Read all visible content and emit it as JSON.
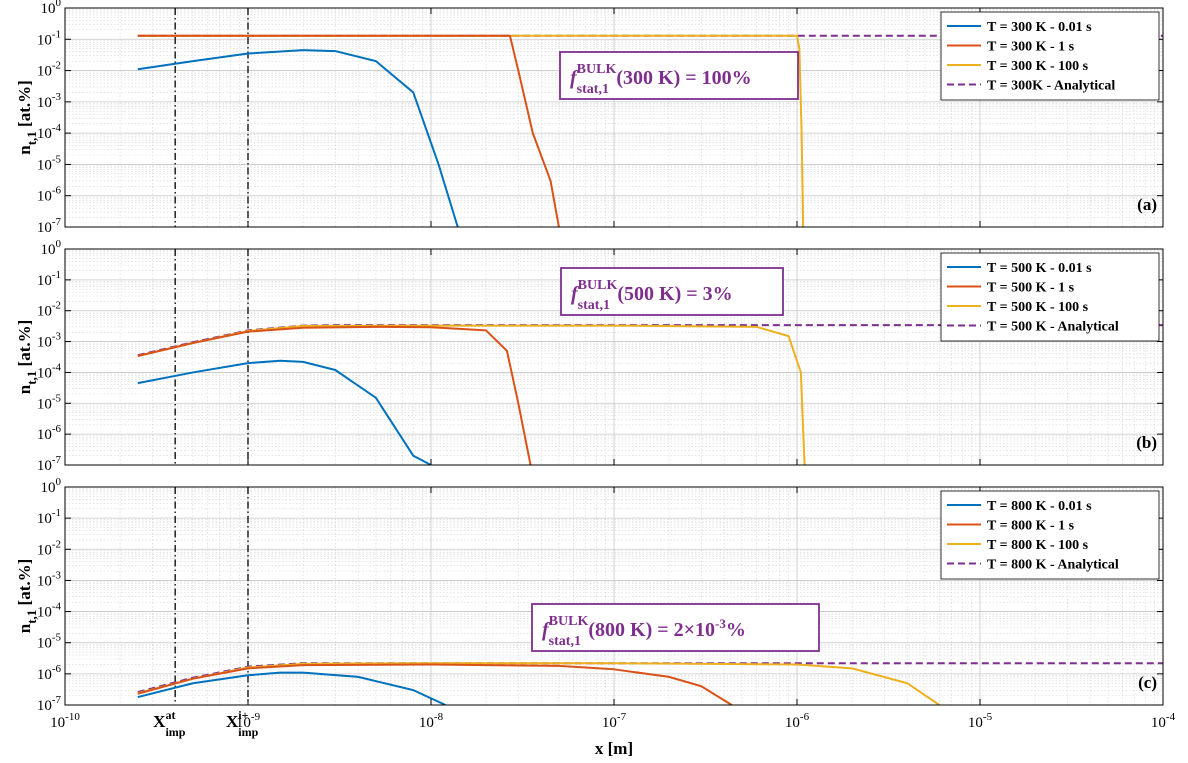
{
  "colors": {
    "blue": "#0072bd",
    "orange": "#d95319",
    "yellow": "#edb120",
    "purple": "#7e2f8e",
    "grid": "#d4d4d4"
  },
  "common": {
    "xlabel": "x [m]",
    "xscale": "log",
    "yscale": "log",
    "xlim": [
      1e-10,
      0.0001
    ],
    "ylim": [
      1e-07,
      1
    ],
    "grid": true,
    "legend_position": "top-right",
    "vlines": [
      {
        "x": 4e-10,
        "label_main": "X",
        "label_sup": "at",
        "label_sub": "imp"
      },
      {
        "x": 1e-09,
        "label_main": "X",
        "label_sup": "i+",
        "label_sub": "imp"
      }
    ]
  },
  "chart_data": [
    {
      "type": "line",
      "panel_label": "(a)",
      "ylabel_main": "n",
      "ylabel_sub": "t,1",
      "ylabel_rest": " [at.%]",
      "annotation": {
        "f": "f",
        "sup": "BULK",
        "sub": "stat,1",
        "rest": "(300 K) = 100%"
      },
      "series": [
        {
          "name": "T = 300 K - 0.01 s",
          "style": "solid",
          "color": "blue",
          "x": [
            2.5e-10,
            5e-10,
            1e-09,
            2e-09,
            3e-09,
            5e-09,
            8e-09,
            1.1e-08,
            1.4e-08
          ],
          "y": [
            0.011,
            0.02,
            0.035,
            0.045,
            0.042,
            0.02,
            0.002,
            1e-05,
            1e-07
          ]
        },
        {
          "name": "T = 300 K - 1 s",
          "style": "solid",
          "color": "orange",
          "x": [
            2.5e-10,
            1e-08,
            2.7e-08,
            3e-08,
            3.6e-08,
            4.5e-08,
            5e-08
          ],
          "y": [
            0.13,
            0.13,
            0.13,
            0.01,
            0.0001,
            3e-06,
            1e-07
          ]
        },
        {
          "name": "T = 300 K - 100 s",
          "style": "solid",
          "color": "yellow",
          "x": [
            2.5e-10,
            1e-07,
            1e-06,
            1.03e-06,
            1.06e-06,
            1.08e-06
          ],
          "y": [
            0.13,
            0.13,
            0.13,
            0.05,
            0.0001,
            1e-07
          ]
        },
        {
          "name": "T = 300K - Analytical",
          "style": "dashed",
          "color": "purple",
          "x": [
            2.5e-10,
            0.0001
          ],
          "y": [
            0.13,
            0.13
          ]
        }
      ]
    },
    {
      "type": "line",
      "panel_label": "(b)",
      "ylabel_main": "n",
      "ylabel_sub": "t,1",
      "ylabel_rest": " [at.%]",
      "annotation": {
        "f": "f",
        "sup": "BULK",
        "sub": "stat,1",
        "rest": "(500 K) = 3%"
      },
      "series": [
        {
          "name": "T = 500 K - 0.01 s",
          "style": "solid",
          "color": "blue",
          "x": [
            2.5e-10,
            5e-10,
            1e-09,
            1.5e-09,
            2e-09,
            3e-09,
            5e-09,
            8e-09,
            1e-08
          ],
          "y": [
            4.5e-05,
            0.0001,
            0.0002,
            0.00024,
            0.00022,
            0.00012,
            1.5e-05,
            2e-07,
            1e-07
          ]
        },
        {
          "name": "T = 500 K - 1 s",
          "style": "solid",
          "color": "orange",
          "x": [
            2.5e-10,
            5e-10,
            1e-09,
            2e-09,
            5e-09,
            1e-08,
            2e-08,
            2.6e-08,
            3e-08,
            3.5e-08
          ],
          "y": [
            0.00034,
            0.0009,
            0.0021,
            0.0028,
            0.003,
            0.0029,
            0.0023,
            0.0005,
            1e-05,
            1e-07
          ]
        },
        {
          "name": "T = 500 K - 100 s",
          "style": "solid",
          "color": "yellow",
          "x": [
            2.5e-10,
            5e-10,
            1e-09,
            2e-09,
            1e-08,
            1e-07,
            6e-07,
            9e-07,
            1.05e-06,
            1.1e-06
          ],
          "y": [
            0.00034,
            0.0009,
            0.0022,
            0.0032,
            0.0033,
            0.0033,
            0.003,
            0.0015,
            0.0001,
            1e-07
          ]
        },
        {
          "name": "T = 500 K - Analytical",
          "style": "dashed",
          "color": "purple",
          "x": [
            2.5e-10,
            5e-10,
            1e-09,
            2e-09,
            3e-09,
            0.0001
          ],
          "y": [
            0.00036,
            0.00095,
            0.0023,
            0.0033,
            0.0034,
            0.0034
          ]
        }
      ]
    },
    {
      "type": "line",
      "panel_label": "(c)",
      "ylabel_main": "n",
      "ylabel_sub": "t,1",
      "ylabel_rest": " [at.%]",
      "annotation": {
        "f": "f",
        "sup": "BULK",
        "sub": "stat,1",
        "rest": "(800 K) = 2×10",
        "exp": "-3",
        "tail": "%"
      },
      "series": [
        {
          "name": "T = 800 K - 0.01 s",
          "style": "solid",
          "color": "blue",
          "x": [
            2.5e-10,
            5e-10,
            1e-09,
            1.5e-09,
            2e-09,
            4e-09,
            8e-09,
            1.2e-08
          ],
          "y": [
            1.8e-07,
            5e-07,
            9e-07,
            1.1e-06,
            1.1e-06,
            8e-07,
            3e-07,
            1e-07
          ]
        },
        {
          "name": "T = 800 K - 1 s",
          "style": "solid",
          "color": "orange",
          "x": [
            2.5e-10,
            5e-10,
            1e-09,
            2e-09,
            1e-08,
            5e-08,
            1e-07,
            2e-07,
            3e-07,
            4.4e-07
          ],
          "y": [
            2.3e-07,
            7e-07,
            1.5e-06,
            1.9e-06,
            2e-06,
            1.8e-06,
            1.4e-06,
            8e-07,
            4e-07,
            1e-07
          ]
        },
        {
          "name": "T = 800 K - 100 s",
          "style": "solid",
          "color": "yellow",
          "x": [
            2.5e-10,
            5e-10,
            1e-09,
            2e-09,
            1e-08,
            1e-07,
            1e-06,
            2e-06,
            4e-06,
            6e-06
          ],
          "y": [
            2.4e-07,
            7e-07,
            1.6e-06,
            2.1e-06,
            2.2e-06,
            2.2e-06,
            2e-06,
            1.5e-06,
            5e-07,
            1e-07
          ]
        },
        {
          "name": "T = 800 K - Analytical",
          "style": "dashed",
          "color": "purple",
          "x": [
            2.5e-10,
            5e-10,
            1e-09,
            2e-09,
            0.0001
          ],
          "y": [
            2.6e-07,
            7.5e-07,
            1.7e-06,
            2.2e-06,
            2.2e-06
          ]
        }
      ]
    }
  ]
}
